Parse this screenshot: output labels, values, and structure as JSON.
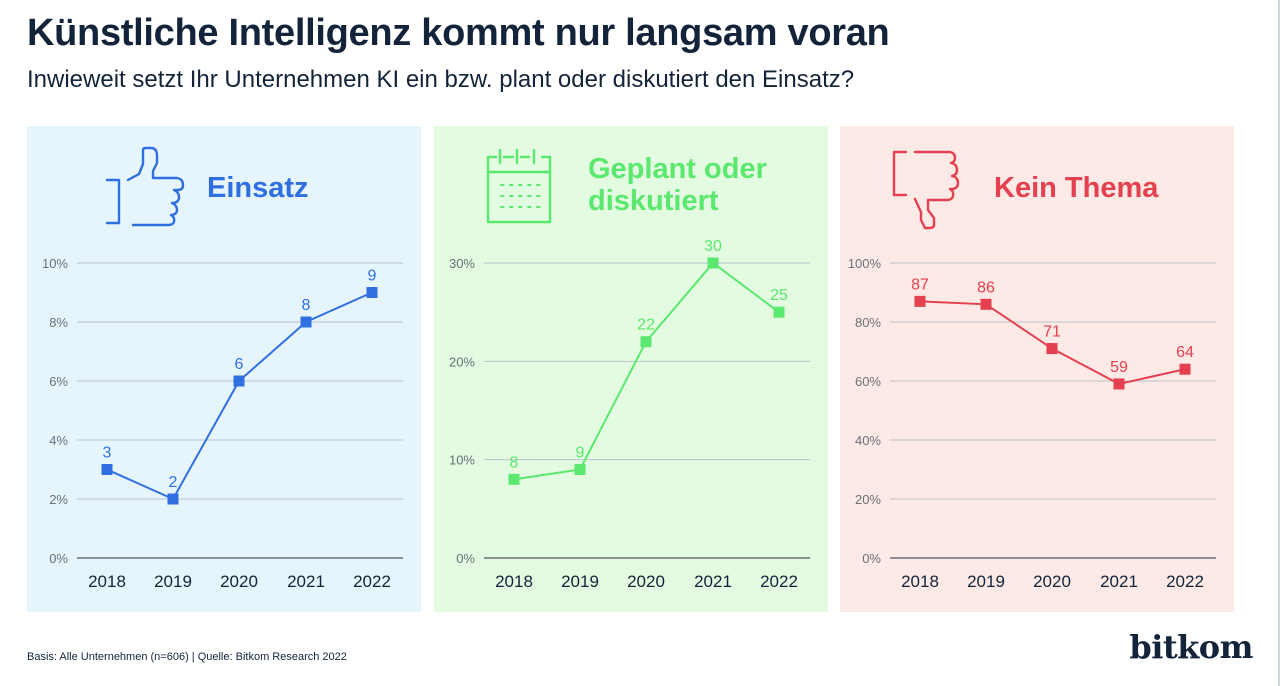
{
  "title": "Künstliche Intelligenz kommt nur langsam voran",
  "subtitle": "Inwieweit setzt Ihr Unternehmen KI ein bzw. plant oder diskutiert den Einsatz?",
  "footer": "Basis: Alle Unternehmen (n=606) | Quelle: Bitkom Research 2022",
  "logo": "bitkom",
  "colors": {
    "einsatz": "#2f6fe0",
    "einsatz_bg": "#e6f5fc",
    "geplant": "#5be86e",
    "geplant_bg": "#e3fbe1",
    "kein": "#e5404f",
    "kein_bg": "#fde9e6",
    "grid": "#b9c2ca",
    "axis": "#6b7178",
    "text": "#13243a"
  },
  "chart_data": [
    {
      "type": "line",
      "title": "Einsatz",
      "icon": "thumbs-up-icon",
      "categories": [
        "2018",
        "2019",
        "2020",
        "2021",
        "2022"
      ],
      "values": [
        3,
        2,
        6,
        8,
        9
      ],
      "value_labels": [
        "3",
        "2",
        "6",
        "8",
        "9"
      ],
      "ylim": [
        0,
        10
      ],
      "yticks": [
        0,
        2,
        4,
        6,
        8,
        10
      ],
      "ytick_labels": [
        "0%",
        "2%",
        "4%",
        "6%",
        "8%",
        "10%"
      ],
      "grid": true
    },
    {
      "type": "line",
      "title": "Geplant oder diskutiert",
      "title_lines": [
        "Geplant oder",
        "diskutiert"
      ],
      "icon": "calendar-icon",
      "categories": [
        "2018",
        "2019",
        "2020",
        "2021",
        "2022"
      ],
      "values": [
        8,
        9,
        22,
        30,
        25
      ],
      "value_labels": [
        "8",
        "9",
        "22",
        "30",
        "25"
      ],
      "ylim": [
        0,
        30
      ],
      "yticks": [
        0,
        10,
        20,
        30
      ],
      "ytick_labels": [
        "0%",
        "10%",
        "20%",
        "30%"
      ],
      "grid": true
    },
    {
      "type": "line",
      "title": "Kein Thema",
      "icon": "thumbs-down-icon",
      "categories": [
        "2018",
        "2019",
        "2020",
        "2021",
        "2022"
      ],
      "values": [
        87,
        86,
        71,
        59,
        64
      ],
      "value_labels": [
        "87",
        "86",
        "71",
        "59",
        "64"
      ],
      "ylim": [
        0,
        100
      ],
      "yticks": [
        0,
        20,
        40,
        60,
        80,
        100
      ],
      "ytick_labels": [
        "0%",
        "20%",
        "40%",
        "60%",
        "80%",
        "100%"
      ],
      "grid": true
    }
  ]
}
